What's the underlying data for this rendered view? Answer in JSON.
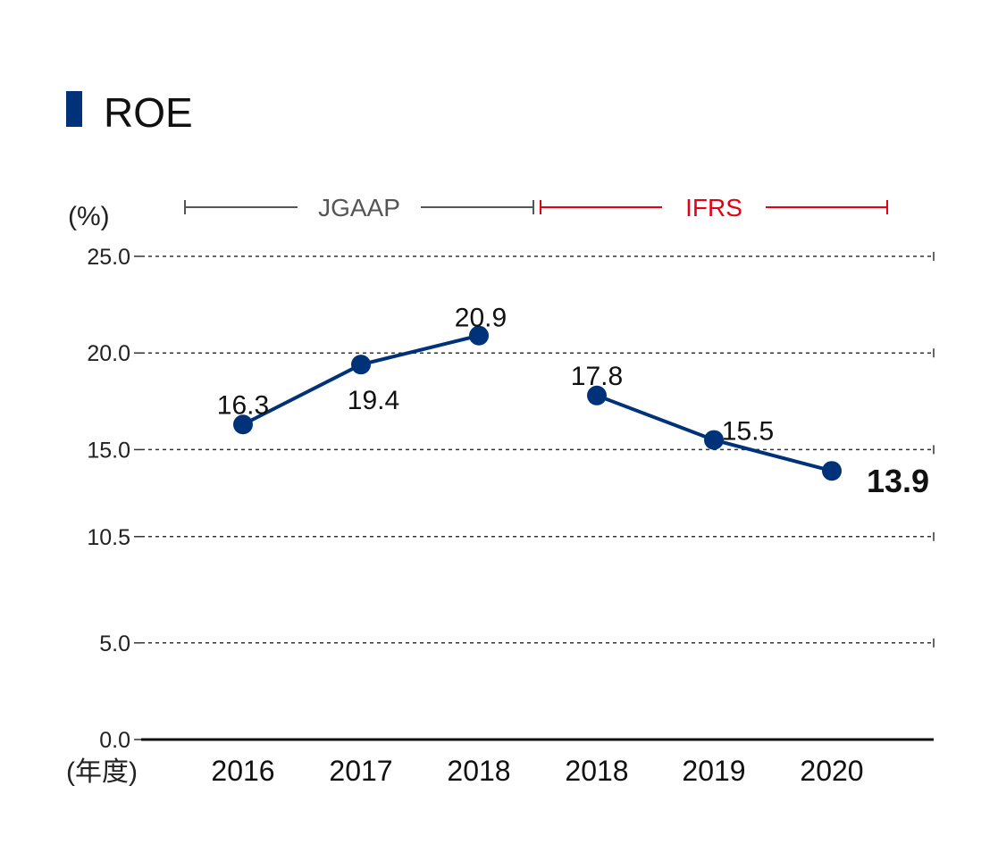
{
  "chart_data": {
    "type": "line",
    "title": "ROE",
    "ylabel": "(%)",
    "xlabel": "(年度)",
    "ylim": [
      0,
      25
    ],
    "yticks": [
      "0.0",
      "5.0",
      "10.5",
      "15.0",
      "20.0",
      "25.0"
    ],
    "grid": true,
    "categories": [
      "2016",
      "2017",
      "2018",
      "2018",
      "2019",
      "2020"
    ],
    "standards": [
      {
        "name": "JGAAP",
        "from": 0,
        "to": 2,
        "color": "#555555"
      },
      {
        "name": "IFRS",
        "from": 3,
        "to": 5,
        "color": "#e60012"
      }
    ],
    "series": [
      {
        "values": [
          16.3,
          19.4,
          20.9,
          null,
          null,
          null
        ],
        "labels": [
          "16.3",
          "19.4",
          "20.9"
        ]
      },
      {
        "values": [
          null,
          null,
          null,
          17.8,
          15.5,
          13.9
        ],
        "labels": [
          "17.8",
          "15.5",
          "13.9"
        ]
      }
    ]
  },
  "colors": {
    "line": "#00327a",
    "marker": "#00327a",
    "accent": "#00327a",
    "ifrs": "#e60012",
    "jgaap": "#555555"
  }
}
